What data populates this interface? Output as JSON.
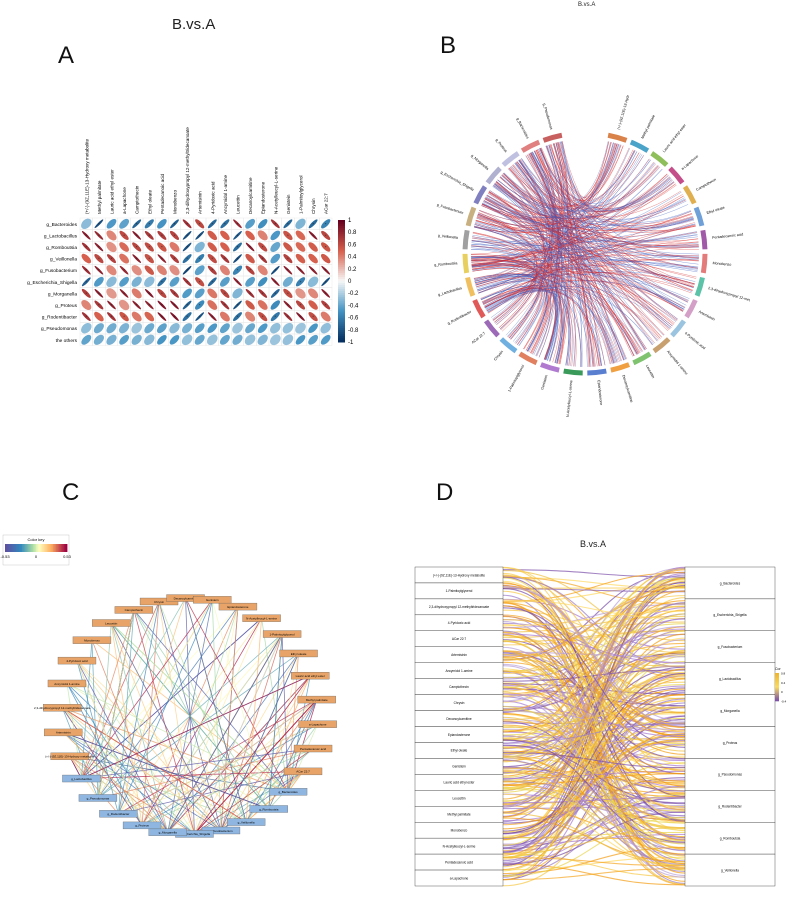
{
  "labels": {
    "a": "A",
    "b": "B",
    "c": "C",
    "d": "D"
  },
  "titles": {
    "a": "B.vs.A",
    "b": "B.vs.A",
    "d": "B.vs.A"
  },
  "chart_data": [
    {
      "type": "heatmap",
      "title": "B.vs.A",
      "subtype": "correlation-ellipse",
      "rows": [
        "g_Bacteroides",
        "g_Lactobacillus",
        "g_Romboutsia",
        "g_Veillonella",
        "g_Fusobacterium",
        "g_Escherichia_Shigella",
        "g_Morganella",
        "g_Proteus",
        "g_Rodentibacter",
        "g_Pseudomonas",
        "the others"
      ],
      "columns": [
        "(+/-)-(9Z,11E)-13-Hydroxy metabolite",
        "Methyl palmitate",
        "Lauric acid ethyl ester",
        "a-Lapachone",
        "Camptothecin",
        "Ethyl oleate",
        "Pentadecanoic acid",
        "Monobenzo",
        "2,3-dihydroxypropyl 12-methyltridecanoate",
        "Artemisinin",
        "4-Pyridoxic acid",
        "Ancymidol 1-amine",
        "Leucettin",
        "Decanoylcarnitine",
        "Epiandosterone",
        "N-Acetylleucyl-L-serine",
        "Genistein",
        "1-Palmitoylglycerol",
        "Chrysin",
        "ACar 22:7"
      ],
      "colorbar": {
        "min": -1,
        "max": 1,
        "ticks": [
          1,
          0.8,
          0.6,
          0.4,
          0.2,
          0,
          -0.2,
          -0.4,
          -0.6,
          -0.8,
          -1
        ]
      },
      "row_sign": [
        -1,
        1,
        1,
        1,
        1,
        -1,
        1,
        1,
        1,
        -1,
        -1
      ],
      "col_sign": [
        1,
        1,
        1,
        1,
        1,
        1,
        1,
        1,
        -1,
        -1,
        1,
        1,
        -1,
        1,
        1,
        -1,
        1,
        1,
        1,
        1
      ]
    },
    {
      "type": "chord",
      "title": "B.vs.A",
      "sectors": [
        "(+/-)-(9Z,11E)-13-Hydroxy metabolite",
        "Methyl palmitate",
        "Lauric acid ethyl ester",
        "a-Lapachone",
        "Camptothecin",
        "Ethyl oleate",
        "Pentadecanoic acid",
        "Monobenzo",
        "2,3-dihydroxypropyl 12-methyltridecanoate",
        "Artemisinin",
        "4-Pyridoxic acid",
        "Ancymidol 1-amine",
        "Leucettin",
        "Decanoylcarnitine",
        "Epiandosterone",
        "N-Acetylleucyl-L-serine",
        "Genistein",
        "1-Palmitoylglycerol",
        "Chrysin",
        "ACar 22:7",
        "g_Rodentibacter",
        "g_Lactobacillus",
        "g_Romboutsia",
        "g_Veillonella",
        "g_Fusobacterium",
        "g_Escherichia_Shigella",
        "g_Morganella",
        "g_Proteus",
        "g_Bacteroides",
        "g_Pseudomonas"
      ],
      "link_colors": {
        "positive": "#d62728",
        "negative": "#3a5bbf"
      }
    },
    {
      "type": "network",
      "legend_title": "Color key",
      "legend_ticks": [
        "-0.53",
        "0",
        "0.53"
      ],
      "metabolite_nodes": [
        "(+/-)-(9Z,11E)-13-Hydroxy metabolite",
        "Artemisinin",
        "2,3-dihydroxypropyl 12-methyltridecanoate",
        "Ancymidol 1-amine",
        "4-Pyridoxic acid",
        "Monobenzo",
        "Leucettin",
        "Camptothecin",
        "Chrysin",
        "Decanoylcarnitine",
        "Genistein",
        "Epiandosterone",
        "N-Acetylleucyl-L-serine",
        "1-Palmitoylglycerol",
        "Ethyl oleate",
        "Lauric acid ethyl ester",
        "Methyl palmitate",
        "a-Lapachone",
        "Pentadecanoic acid",
        "ACar 22:7"
      ],
      "microbe_nodes": [
        "g_Bacteroides",
        "g_Romboutsia",
        "g_Veillonella",
        "g_Fusobacterium",
        "g_Escherichia_Shigella",
        "g_Morganella",
        "g_Proteus",
        "g_Rodentibacter",
        "g_Pseudomonas",
        "g_Lactobacillus"
      ]
    },
    {
      "type": "sankey",
      "title": "B.vs.A",
      "left_nodes": [
        "(+/-)-(9Z,11E)-13-Hydroxy metabolite",
        "1-Palmitoylglycerol",
        "2,3-dihydroxypropyl 12-methyltridecanoate",
        "4-Pyridoxic acid",
        "ACar 22:7",
        "Artemisinin",
        "Ancymidol 1-amine",
        "Camptothecin",
        "Chrysin",
        "Decanoylcarnitine",
        "Epiandosterone",
        "Ethyl oleate",
        "Genistein",
        "Lauric acid ethyl ester",
        "Leucettin",
        "Methyl palmitate",
        "Monobenzo",
        "N-Acetylleucyl-L-serine",
        "Pentadecanoic acid",
        "a-Lapachone"
      ],
      "right_nodes": [
        "g_Bacteroides",
        "g_Escherichia_Shigella",
        "g_Fusobacterium",
        "g_Lactobacillus",
        "g_Morganella",
        "g_Proteus",
        "g_Pseudomonas",
        "g_Rodentibacter",
        "g_Romboutsia",
        "g_Veillonella"
      ],
      "legend_title": "Cor",
      "legend_ticks": [
        "0.8",
        "0.4",
        "0",
        "-0.4"
      ]
    }
  ]
}
